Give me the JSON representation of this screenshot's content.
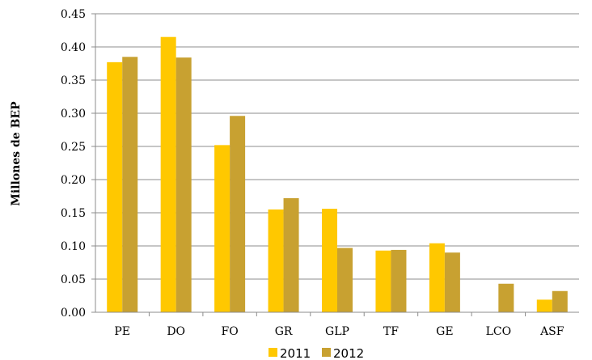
{
  "chart_data": {
    "type": "bar",
    "title": "",
    "xlabel": "",
    "ylabel": "Millones de BEP",
    "ylim": [
      0,
      0.45
    ],
    "yticks": [
      "0.00",
      "0.05",
      "0.10",
      "0.15",
      "0.20",
      "0.25",
      "0.30",
      "0.35",
      "0.40",
      "0.45"
    ],
    "grid": true,
    "legend_position": "bottom",
    "categories": [
      "PE",
      "DO",
      "FO",
      "GR",
      "GLP",
      "TF",
      "GE",
      "LCO",
      "ASF"
    ],
    "series": [
      {
        "name": "2011",
        "color": "#FFC800",
        "values": [
          0.377,
          0.415,
          0.252,
          0.155,
          0.156,
          0.093,
          0.104,
          0,
          0.019
        ]
      },
      {
        "name": "2012",
        "color": "#C8A131",
        "values": [
          0.385,
          0.384,
          0.296,
          0.172,
          0.097,
          0.094,
          0.09,
          0.043,
          0.032
        ]
      }
    ]
  }
}
